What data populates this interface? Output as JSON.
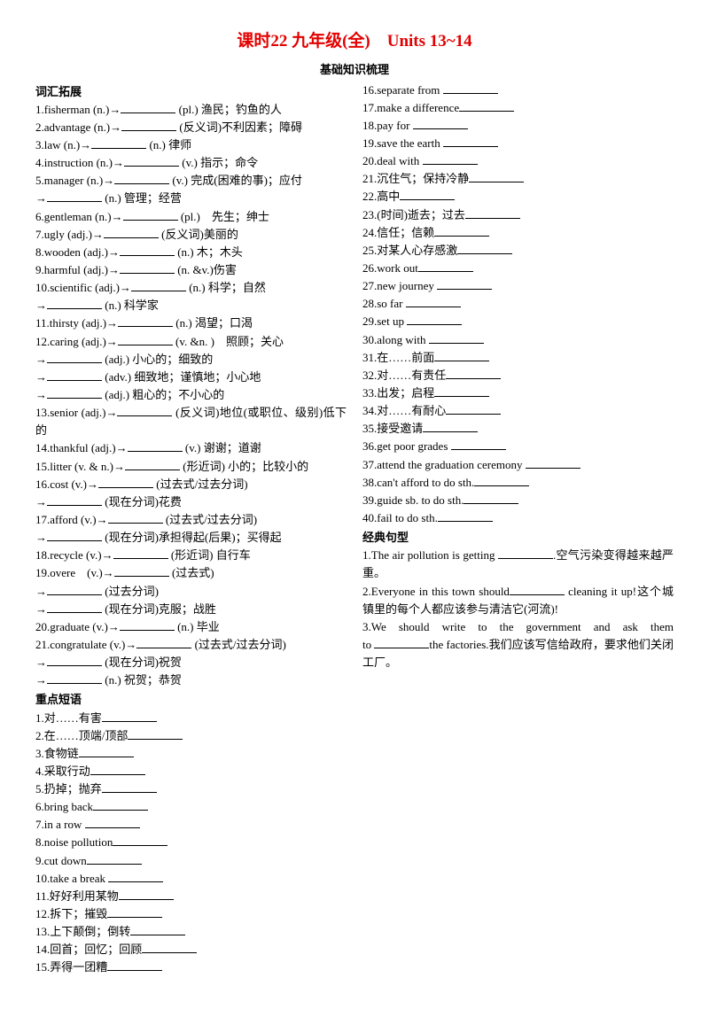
{
  "title": "课时22 九年级(全)　Units 13~14",
  "subtitle": "基础知识梳理",
  "sections": {
    "vocab": "词汇拓展",
    "phrases": "重点短语",
    "sentences": "经典句型"
  },
  "vocab": [
    "1.fisherman (n.)→__________ (pl.) 渔民；钓鱼的人",
    "2.advantage (n.)→__________ (反义词)不利因素；障碍",
    "3.law (n.)→__________ (n.) 律师",
    "4.instruction (n.)→__________ (v.) 指示；命令",
    "5.manager (n.)→__________ (v.) 完成(困难的事)；应付",
    "→__________ (n.) 管理；经营",
    "6.gentleman (n.)→__________ (pl.)　先生；绅士",
    "7.ugly (adj.)→__________ (反义词)美丽的",
    "8.wooden (adj.)→__________ (n.) 木；木头",
    "9.harmful (adj.)→__________ (n. &v.)伤害",
    "10.scientific (adj.)→__________ (n.) 科学；自然",
    "→__________ (n.) 科学家",
    "11.thirsty (adj.)→__________ (n.) 渴望；口渴",
    "12.caring (adj.)→__________ (v. &n. )　照顾；关心",
    "→__________ (adj.) 小心的；细致的",
    "→__________ (adv.) 细致地；谨慎地；小心地",
    "→__________ (adj.) 粗心的；不小心的",
    "13.senior (adj.)→__________ (反义词)地位(或职位、级别)低下的",
    "14.thankful (adj.)→__________ (v.) 谢谢；道谢",
    "15.litter (v. & n.)→__________ (形近词) 小的；比较小的",
    "16.cost (v.)→__________ (过去式/过去分词)",
    "→__________ (现在分词)花费",
    "17.afford (v.)→__________ (过去式/过去分词)",
    "→__________ (现在分词)承担得起(后果)；买得起",
    "18.recycle (v.)→__________ (形近词) 自行车",
    "19.overe　(v.)→__________ (过去式)",
    "→__________ (过去分词)",
    "→__________ (现在分词)克服；战胜",
    "20.graduate (v.)→__________ (n.) 毕业",
    "21.congratulate (v.)→__________ (过去式/过去分词)",
    "→__________ (现在分词)祝贺",
    "→__________ (n.) 祝贺；恭贺"
  ],
  "phrases": [
    "1.对……有害__________",
    "2.在……顶端/顶部__________",
    "3.食物链__________",
    "4.采取行动__________",
    "5.扔掉；抛弃__________",
    "6.bring back__________",
    "7.in a row __________",
    "8.noise pollution__________",
    "9.cut down__________",
    "10.take a break __________",
    "11.好好利用某物__________",
    "12.拆下；摧毁__________",
    "13.上下颠倒；倒转__________",
    "14.回首；回忆；回顾__________",
    "15.弄得一团糟__________",
    "16.separate from __________",
    "17.make a difference__________",
    "18.pay for __________",
    "19.save the earth __________",
    "20.deal with __________",
    "21.沉住气；保持冷静__________",
    "22.高中__________",
    "23.(时间)逝去；过去__________",
    "24.信任；信赖__________",
    "25.对某人心存感激__________",
    "26.work out__________",
    "27.new journey __________",
    "28.so far __________",
    "29.set up __________",
    "30.along with __________",
    "31.在……前面__________",
    "32.对……有责任__________",
    "33.出发；启程__________",
    "34.对……有耐心__________",
    "35.接受邀请__________",
    "36.get poor grades __________",
    "37.attend the graduation ceremony __________",
    "38.can't afford to do sth.__________",
    "39.guide sb. to do sth.__________",
    "40.fail to do sth.__________"
  ],
  "sentences": [
    "1.The air pollution is getting __________.空气污染变得越来越严重。",
    "2.Everyone in this town should__________ cleaning it up!这个城镇里的每个人都应该参与清洁它(河流)!",
    "3.We should write to the government and ask them|SPREAD",
    " to __________the factories.我们应该写信给政府，要求他们关闭工厂。"
  ]
}
